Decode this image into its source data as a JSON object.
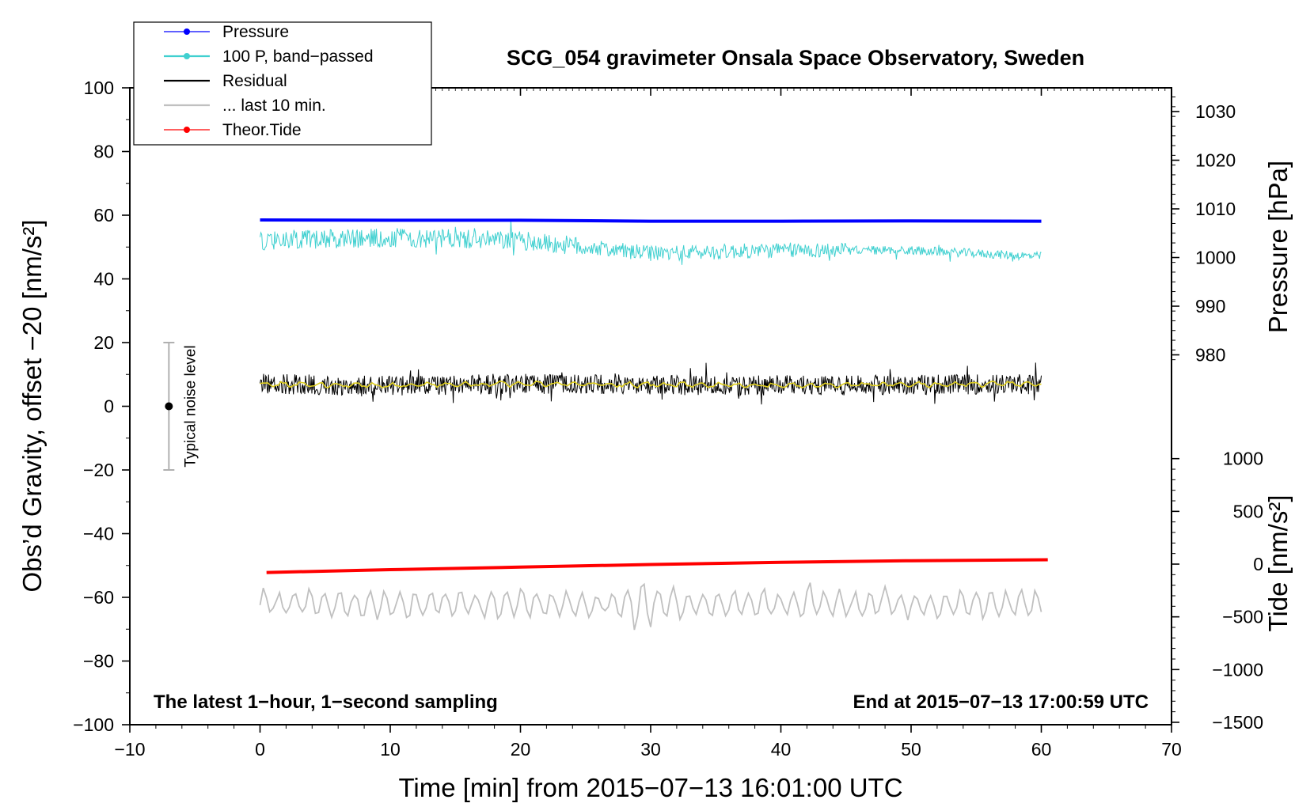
{
  "chart_data": {
    "type": "line",
    "title": "SCG_054 gravimeter Onsala Space Observatory, Sweden",
    "xlabel": "Time [min] from 2015−07−13 16:01:00 UTC",
    "ylabel_left": "Obs’d Gravity, offset −20 [nm/s²]",
    "ylabel_right_pressure": "Pressure [hPa]",
    "ylabel_right_tide": "Tide [nm/s²]",
    "xlim": [
      -10,
      70
    ],
    "ylim_left": [
      -100,
      100
    ],
    "x_ticks": [
      -10,
      0,
      10,
      20,
      30,
      40,
      50,
      60,
      70
    ],
    "x_tick_labels": [
      "−10",
      "0",
      "10",
      "20",
      "30",
      "40",
      "50",
      "60",
      "70"
    ],
    "y_ticks_left": [
      -100,
      -80,
      -60,
      -40,
      -20,
      0,
      20,
      40,
      60,
      80,
      100
    ],
    "y_tick_labels_left": [
      "−100",
      "−80",
      "−60",
      "−40",
      "−20",
      "0",
      "20",
      "40",
      "60",
      "80",
      "100"
    ],
    "pressure_ticks": [
      980,
      990,
      1000,
      1010,
      1020,
      1030
    ],
    "pressure_tick_labels": [
      "980",
      "990",
      "1000",
      "1010",
      "1020",
      "1030"
    ],
    "tide_ticks": [
      -1500,
      -1000,
      -500,
      0,
      500,
      1000
    ],
    "tide_tick_labels": [
      "−1500",
      "−1000",
      "−500",
      "0",
      "500",
      "1000"
    ],
    "legend_position": "top-left",
    "grid": false,
    "series": [
      {
        "name": "Pressure",
        "color": "#0000ff",
        "x": [
          0,
          10,
          20,
          30,
          40,
          50,
          60
        ],
        "y_left_units": [
          58.5,
          58.4,
          58.4,
          58.1,
          58.1,
          58.2,
          58.1
        ]
      },
      {
        "name": "100 P, band−passed",
        "color": "#40d0d0",
        "x": [
          0,
          10,
          20,
          30,
          40,
          50,
          60
        ],
        "y_left_units": [
          52,
          53,
          52,
          48,
          49,
          49,
          47
        ]
      },
      {
        "name": "Residual",
        "color": "#000000",
        "x": [
          0,
          10,
          20,
          30,
          40,
          50,
          60
        ],
        "y_left_units": [
          7,
          6.5,
          7,
          6.8,
          6.5,
          6.8,
          7
        ]
      },
      {
        "name": "... last 10 min.",
        "color": "#c0c0c0",
        "x": [
          0,
          10,
          20,
          30,
          40,
          50,
          60
        ],
        "y_left_units": [
          -62,
          -62,
          -62,
          -62,
          -62,
          -62,
          -62
        ]
      },
      {
        "name": "Theor.Tide",
        "color": "#ff0000",
        "x": [
          0.5,
          10,
          20,
          30,
          40,
          50,
          60.5
        ],
        "y_left_units": [
          -52.2,
          -51.3,
          -50.5,
          -49.7,
          -49.0,
          -48.5,
          -48.2
        ]
      }
    ],
    "noise_bar": {
      "label": "Typical noise level",
      "x": -7,
      "center": 0,
      "low": -20,
      "high": 20
    },
    "notes": {
      "left": "The latest 1−hour, 1−second sampling",
      "right": "End at 2015−07−13 17:00:59 UTC"
    }
  }
}
